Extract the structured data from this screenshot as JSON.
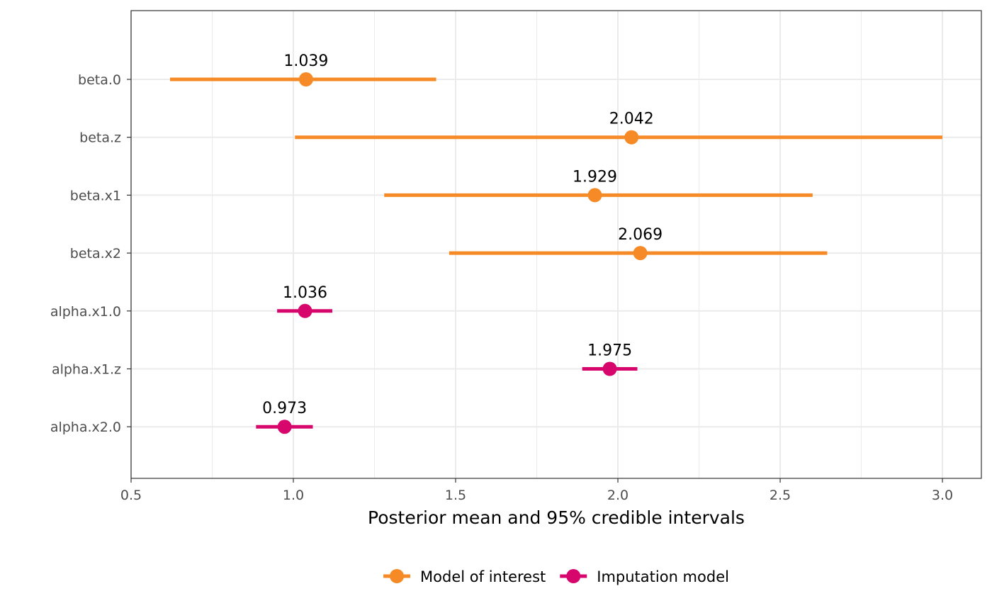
{
  "chart_data": {
    "type": "dot-interval",
    "xlabel": "Posterior mean and 95% credible intervals",
    "ylabel": "",
    "xlim": [
      0.5,
      3.12
    ],
    "x_ticks": [
      {
        "value": 0.5,
        "label": "0.5"
      },
      {
        "value": 1.0,
        "label": "1.0"
      },
      {
        "value": 1.5,
        "label": "1.5"
      },
      {
        "value": 2.0,
        "label": "2.0"
      },
      {
        "value": 2.5,
        "label": "2.5"
      },
      {
        "value": 3.0,
        "label": "3.0"
      }
    ],
    "x_minor_ticks": [
      0.75,
      1.25,
      1.75,
      2.25,
      2.75
    ],
    "grid": true,
    "legend_position": "bottom",
    "series": [
      {
        "name": "Model of interest",
        "color": "#F58A26"
      },
      {
        "name": "Imputation model",
        "color": "#D6066D"
      }
    ],
    "rows": [
      {
        "label": "beta.0",
        "series": "Model of interest",
        "mean": 1.039,
        "mean_label": "1.039",
        "lower": 0.62,
        "upper": 1.44
      },
      {
        "label": "beta.z",
        "series": "Model of interest",
        "mean": 2.042,
        "mean_label": "2.042",
        "lower": 1.005,
        "upper": 3.0
      },
      {
        "label": "beta.x1",
        "series": "Model of interest",
        "mean": 1.929,
        "mean_label": "1.929",
        "lower": 1.28,
        "upper": 2.6
      },
      {
        "label": "beta.x2",
        "series": "Model of interest",
        "mean": 2.069,
        "mean_label": "2.069",
        "lower": 1.48,
        "upper": 2.645
      },
      {
        "label": "alpha.x1.0",
        "series": "Imputation model",
        "mean": 1.036,
        "mean_label": "1.036",
        "lower": 0.95,
        "upper": 1.12
      },
      {
        "label": "alpha.x1.z",
        "series": "Imputation model",
        "mean": 1.975,
        "mean_label": "1.975",
        "lower": 1.89,
        "upper": 2.06
      },
      {
        "label": "alpha.x2.0",
        "series": "Imputation model",
        "mean": 0.973,
        "mean_label": "0.973",
        "lower": 0.885,
        "upper": 1.06
      }
    ]
  }
}
